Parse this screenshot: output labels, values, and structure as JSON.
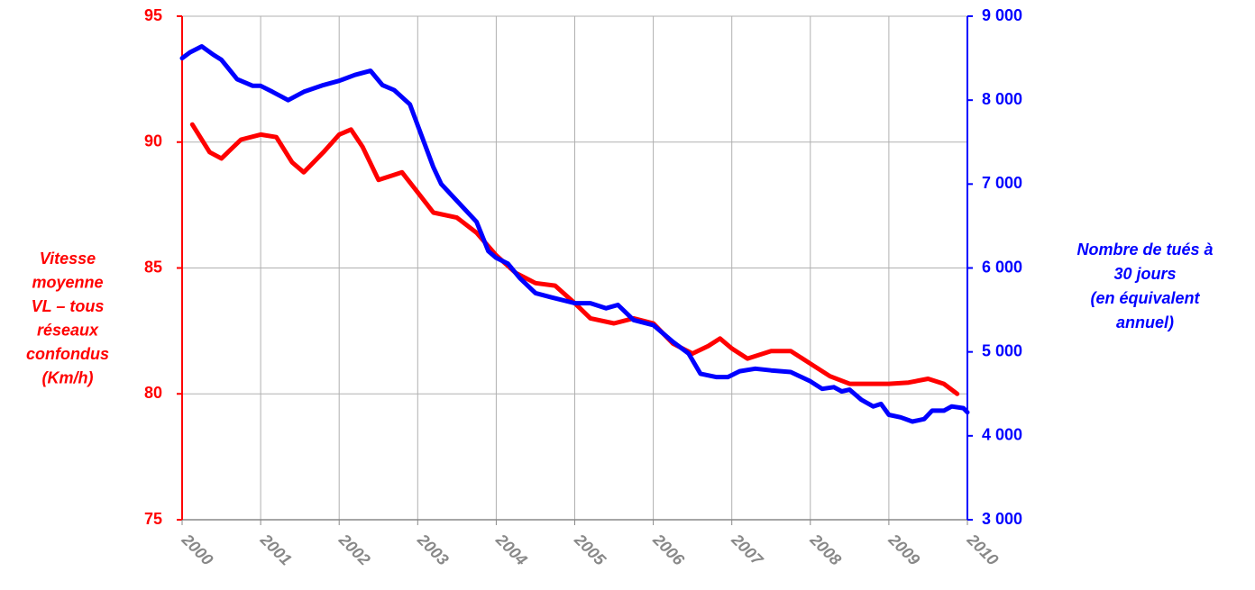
{
  "chart_data": {
    "type": "line",
    "y_label_lines": [
      "Vitesse",
      "moyenne",
      "VL – tous",
      "réseaux",
      "confondus",
      "(Km/h)"
    ],
    "y2_label_lines": [
      "Nombre de tués à",
      "30 jours",
      "(en équivalent",
      "annuel)"
    ],
    "xlim": [
      2000,
      2010
    ],
    "xticks": [
      2000,
      2001,
      2002,
      2003,
      2004,
      2005,
      2006,
      2007,
      2008,
      2009,
      2010
    ],
    "ylim": [
      75,
      95
    ],
    "yticks": [
      75,
      80,
      85,
      90,
      95
    ],
    "y2lim": [
      3000,
      9000
    ],
    "y2ticks": [
      {
        "value": 3000,
        "label": "3 000"
      },
      {
        "value": 4000,
        "label": "4 000"
      },
      {
        "value": 5000,
        "label": "5 000"
      },
      {
        "value": 6000,
        "label": "6 000"
      },
      {
        "value": 7000,
        "label": "7 000"
      },
      {
        "value": 8000,
        "label": "8 000"
      },
      {
        "value": 9000,
        "label": "9 000"
      }
    ],
    "y_color": "#ff0000",
    "y2_color": "#0000ff",
    "grid": true,
    "series": [
      {
        "color": "#ff0000",
        "axis": "y",
        "x": [
          2000.13,
          2000.35,
          2000.5,
          2000.75,
          2001.0,
          2001.2,
          2001.4,
          2001.55,
          2001.8,
          2002.0,
          2002.15,
          2002.3,
          2002.5,
          2002.7,
          2002.8,
          2003.0,
          2003.2,
          2003.5,
          2003.75,
          2004.0,
          2004.25,
          2004.5,
          2004.75,
          2005.0,
          2005.2,
          2005.5,
          2005.75,
          2006.0,
          2006.25,
          2006.5,
          2006.7,
          2006.85,
          2007.0,
          2007.2,
          2007.5,
          2007.75,
          2008.0,
          2008.25,
          2008.5,
          2008.75,
          2009.0,
          2009.25,
          2009.5,
          2009.7,
          2009.87
        ],
        "values": [
          90.7,
          89.6,
          89.35,
          90.1,
          90.3,
          90.2,
          89.2,
          88.8,
          89.6,
          90.3,
          90.5,
          89.8,
          88.5,
          88.7,
          88.8,
          88.0,
          87.2,
          87.0,
          86.4,
          85.5,
          84.8,
          84.4,
          84.3,
          83.6,
          83.0,
          82.8,
          83.0,
          82.8,
          82.0,
          81.6,
          81.9,
          82.2,
          81.8,
          81.4,
          81.7,
          81.7,
          81.2,
          80.7,
          80.4,
          80.4,
          80.4,
          80.45,
          80.6,
          80.4,
          80.0
        ]
      },
      {
        "color": "#0000ff",
        "axis": "y2",
        "x": [
          2000.0,
          2000.1,
          2000.25,
          2000.4,
          2000.5,
          2000.7,
          2000.9,
          2001.0,
          2001.15,
          2001.35,
          2001.55,
          2001.8,
          2002.0,
          2002.2,
          2002.4,
          2002.55,
          2002.7,
          2002.9,
          2003.0,
          2003.2,
          2003.3,
          2003.5,
          2003.75,
          2003.9,
          2004.0,
          2004.15,
          2004.3,
          2004.5,
          2004.7,
          2005.0,
          2005.2,
          2005.4,
          2005.55,
          2005.75,
          2006.0,
          2006.25,
          2006.45,
          2006.6,
          2006.8,
          2006.95,
          2007.1,
          2007.3,
          2007.5,
          2007.75,
          2008.0,
          2008.15,
          2008.3,
          2008.4,
          2008.5,
          2008.65,
          2008.8,
          2008.9,
          2009.0,
          2009.15,
          2009.3,
          2009.45,
          2009.55,
          2009.7,
          2009.8,
          2009.95,
          2010.0
        ],
        "values": [
          8500,
          8570,
          8640,
          8540,
          8480,
          8250,
          8170,
          8170,
          8100,
          8000,
          8100,
          8180,
          8230,
          8300,
          8350,
          8180,
          8120,
          7950,
          7700,
          7200,
          7000,
          6800,
          6550,
          6200,
          6120,
          6050,
          5880,
          5700,
          5650,
          5580,
          5580,
          5520,
          5560,
          5380,
          5320,
          5120,
          4980,
          4740,
          4700,
          4700,
          4770,
          4800,
          4780,
          4760,
          4650,
          4560,
          4580,
          4530,
          4550,
          4430,
          4350,
          4380,
          4250,
          4220,
          4170,
          4200,
          4300,
          4300,
          4350,
          4330,
          4280
        ]
      }
    ]
  }
}
